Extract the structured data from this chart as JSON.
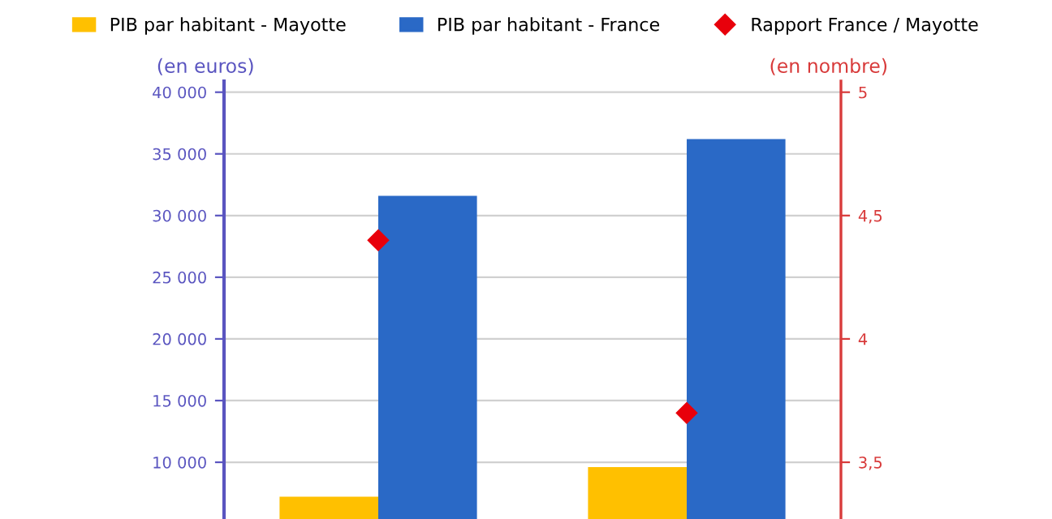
{
  "chart_data": {
    "type": "bar",
    "categories": [
      null,
      null
    ],
    "series": [
      {
        "name": "PIB par habitant - Mayotte",
        "color": "#ffc000",
        "values": [
          7200,
          9600
        ]
      },
      {
        "name": "PIB par habitant - France",
        "color": "#2a69c6",
        "values": [
          31600,
          36200
        ]
      },
      {
        "name": "Rapport France / Mayotte",
        "color": "#e8000b",
        "values": [
          4.4,
          3.7
        ],
        "type": "scatter",
        "axis": "y2",
        "marker": "diamond"
      }
    ],
    "ylabel": "(en euros)",
    "y2label": "(en nombre)",
    "ylim": [
      5400,
      40900
    ],
    "yticks": [
      {
        "value": 10000,
        "label": "10 000"
      },
      {
        "value": 15000,
        "label": "15 000"
      },
      {
        "value": 20000,
        "label": "20 000"
      },
      {
        "value": 25000,
        "label": "25 000"
      },
      {
        "value": 30000,
        "label": "30 000"
      },
      {
        "value": 35000,
        "label": "35 000"
      },
      {
        "value": 40000,
        "label": "40 000"
      }
    ],
    "y2lim": [
      3.27,
      5.045
    ],
    "y2ticks": [
      {
        "value": 3.5,
        "label": "3,5"
      },
      4,
      {
        "value": 4.5,
        "label": "4,5"
      },
      5
    ],
    "grid": "y",
    "legend": "top",
    "tick_labels": "y"
  }
}
